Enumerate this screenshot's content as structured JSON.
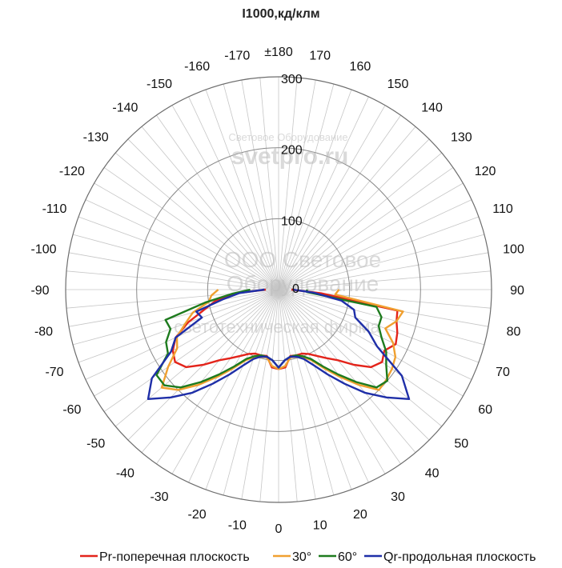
{
  "chart_data": {
    "type": "polar-line",
    "title": "I1000,кд/клм",
    "angle_ticks": [
      "±180",
      170,
      160,
      150,
      140,
      130,
      120,
      110,
      100,
      90,
      80,
      70,
      60,
      50,
      40,
      30,
      20,
      10,
      0,
      -10,
      -20,
      -30,
      -40,
      -50,
      -60,
      -70,
      -80,
      -90,
      -100,
      -110,
      -120,
      -130,
      -140,
      -150,
      -160,
      -170
    ],
    "radial_ticks": [
      0,
      100,
      200,
      300
    ],
    "rlim": [
      0,
      300
    ],
    "grid": true,
    "legend_position": "bottom",
    "watermark": {
      "line1": "Световое Оборудование",
      "line2": "svetpro.ru",
      "line3": "ООО Световое",
      "line4": "Оборудование",
      "line5": "светотехническая фирма"
    },
    "series": [
      {
        "name": "Pr-поперечная плоскость",
        "color": "#e3241b",
        "points": [
          [
            -90,
            18
          ],
          [
            -85,
            60
          ],
          [
            -80,
            90
          ],
          [
            -75,
            108
          ],
          [
            -70,
            136
          ],
          [
            -65,
            160
          ],
          [
            -60,
            172
          ],
          [
            -55,
            178
          ],
          [
            -50,
            170
          ],
          [
            -45,
            150
          ],
          [
            -40,
            130
          ],
          [
            -35,
            118
          ],
          [
            -30,
            108
          ],
          [
            -25,
            100
          ],
          [
            -20,
            96
          ],
          [
            -15,
            96
          ],
          [
            -10,
            95
          ],
          [
            -5,
            110
          ],
          [
            0,
            112
          ],
          [
            5,
            110
          ],
          [
            10,
            95
          ],
          [
            15,
            96
          ],
          [
            20,
            96
          ],
          [
            25,
            100
          ],
          [
            30,
            108
          ],
          [
            35,
            118
          ],
          [
            40,
            130
          ],
          [
            45,
            150
          ],
          [
            50,
            170
          ],
          [
            55,
            178
          ],
          [
            60,
            172
          ],
          [
            65,
            182
          ],
          [
            70,
            178
          ],
          [
            75,
            172
          ],
          [
            80,
            170
          ],
          [
            85,
            60
          ],
          [
            90,
            18
          ]
        ]
      },
      {
        "name": "30°",
        "color": "#f0a030",
        "points": [
          [
            -90,
            85
          ],
          [
            -85,
            95
          ],
          [
            -80,
            100
          ],
          [
            -75,
            125
          ],
          [
            -70,
            140
          ],
          [
            -65,
            158
          ],
          [
            -60,
            165
          ],
          [
            -55,
            190
          ],
          [
            -50,
            215
          ],
          [
            -45,
            200
          ],
          [
            -40,
            175
          ],
          [
            -35,
            150
          ],
          [
            -30,
            128
          ],
          [
            -25,
            110
          ],
          [
            -20,
            101
          ],
          [
            -15,
            98
          ],
          [
            -10,
            97
          ],
          [
            -5,
            108
          ],
          [
            0,
            112
          ],
          [
            5,
            108
          ],
          [
            10,
            97
          ],
          [
            15,
            98
          ],
          [
            20,
            101
          ],
          [
            25,
            110
          ],
          [
            30,
            128
          ],
          [
            35,
            150
          ],
          [
            40,
            175
          ],
          [
            45,
            200
          ],
          [
            50,
            198
          ],
          [
            55,
            195
          ],
          [
            60,
            190
          ],
          [
            65,
            178
          ],
          [
            70,
            160
          ],
          [
            75,
            172
          ],
          [
            80,
            178
          ],
          [
            85,
            80
          ],
          [
            90,
            85
          ]
        ]
      },
      {
        "name": "60°",
        "color": "#1e7b1e",
        "points": [
          [
            -90,
            40
          ],
          [
            -85,
            65
          ],
          [
            -80,
            105
          ],
          [
            -75,
            165
          ],
          [
            -70,
            162
          ],
          [
            -65,
            175
          ],
          [
            -60,
            180
          ],
          [
            -55,
            210
          ],
          [
            -50,
            210
          ],
          [
            -45,
            195
          ],
          [
            -40,
            170
          ],
          [
            -35,
            146
          ],
          [
            -30,
            125
          ],
          [
            -25,
            108
          ],
          [
            -20,
            100
          ],
          [
            -15,
            96
          ],
          [
            -10,
            96
          ],
          [
            -5,
            100
          ],
          [
            0,
            110
          ],
          [
            5,
            100
          ],
          [
            10,
            96
          ],
          [
            15,
            96
          ],
          [
            20,
            100
          ],
          [
            25,
            108
          ],
          [
            30,
            125
          ],
          [
            35,
            146
          ],
          [
            40,
            170
          ],
          [
            45,
            195
          ],
          [
            50,
            200
          ],
          [
            55,
            185
          ],
          [
            60,
            175
          ],
          [
            65,
            160
          ],
          [
            70,
            150
          ],
          [
            75,
            150
          ],
          [
            80,
            140
          ],
          [
            85,
            40
          ],
          [
            90,
            40
          ]
        ]
      },
      {
        "name": "Qr-продольная плоскость",
        "color": "#1f2fa8",
        "points": [
          [
            -90,
            20
          ],
          [
            -85,
            55
          ],
          [
            -80,
            80
          ],
          [
            -75,
            120
          ],
          [
            -70,
            115
          ],
          [
            -65,
            160
          ],
          [
            -60,
            175
          ],
          [
            -55,
            218
          ],
          [
            -50,
            240
          ],
          [
            -45,
            215
          ],
          [
            -40,
            190
          ],
          [
            -35,
            162
          ],
          [
            -30,
            138
          ],
          [
            -25,
            118
          ],
          [
            -20,
            104
          ],
          [
            -15,
            98
          ],
          [
            -10,
            96
          ],
          [
            -5,
            100
          ],
          [
            0,
            110
          ],
          [
            5,
            100
          ],
          [
            10,
            96
          ],
          [
            15,
            98
          ],
          [
            20,
            104
          ],
          [
            25,
            118
          ],
          [
            30,
            138
          ],
          [
            35,
            162
          ],
          [
            40,
            190
          ],
          [
            45,
            215
          ],
          [
            50,
            240
          ],
          [
            55,
            212
          ],
          [
            60,
            160
          ],
          [
            65,
            140
          ],
          [
            70,
            115
          ],
          [
            75,
            110
          ],
          [
            80,
            90
          ],
          [
            85,
            50
          ],
          [
            90,
            20
          ]
        ]
      }
    ]
  }
}
